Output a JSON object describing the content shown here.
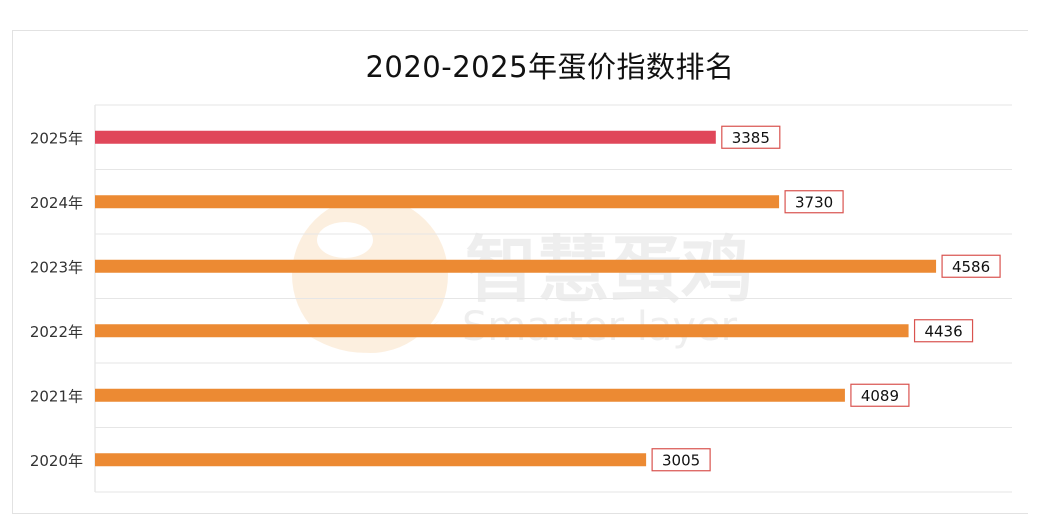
{
  "chart_data": {
    "type": "bar",
    "orientation": "horizontal",
    "title": "2020-2025年蛋价指数排名",
    "categories": [
      "2025年",
      "2024年",
      "2023年",
      "2022年",
      "2021年",
      "2020年"
    ],
    "values": [
      3385,
      3730,
      4586,
      4436,
      4089,
      3005
    ],
    "xlim": [
      0,
      5000
    ],
    "grid": "horizontal separators",
    "colors": {
      "highlight": "#e0475a",
      "default": "#ec8a33",
      "label_border": "#d9534f"
    }
  },
  "watermark": {
    "brand_cn": "智慧蛋鸡",
    "brand_en": "Smarter layer",
    "icon": "chicken-logo-icon"
  }
}
